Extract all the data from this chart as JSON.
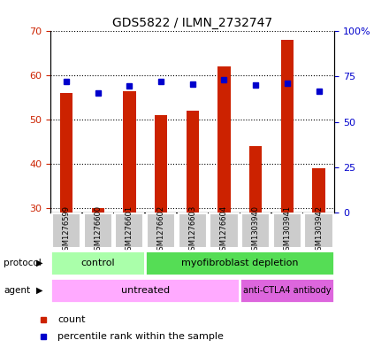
{
  "title": "GDS5822 / ILMN_2732747",
  "samples": [
    "GSM1276599",
    "GSM1276600",
    "GSM1276601",
    "GSM1276602",
    "GSM1276603",
    "GSM1276604",
    "GSM1303940",
    "GSM1303941",
    "GSM1303942"
  ],
  "counts": [
    56.0,
    30.0,
    56.5,
    51.0,
    52.0,
    62.0,
    44.0,
    68.0,
    39.0
  ],
  "percentiles": [
    72.5,
    66.0,
    70.0,
    72.5,
    71.0,
    73.5,
    70.5,
    71.5,
    67.0
  ],
  "ylim_left": [
    29,
    70
  ],
  "ylim_right": [
    0,
    100
  ],
  "yticks_left": [
    30,
    40,
    50,
    60,
    70
  ],
  "yticks_right": [
    0,
    25,
    50,
    75,
    100
  ],
  "bar_color": "#cc2200",
  "dot_color": "#0000cc",
  "bar_bottom": 29,
  "protocol_labels": [
    "control",
    "myofibroblast depletion"
  ],
  "protocol_colors": [
    "#aaffaa",
    "#55dd55"
  ],
  "agent_labels": [
    "untreated",
    "anti-CTLA4 antibody"
  ],
  "agent_colors": [
    "#ffaaff",
    "#dd66dd"
  ],
  "bg_color": "#cccccc",
  "plot_bg": "#ffffff",
  "left_tick_color": "#cc2200",
  "right_tick_color": "#0000cc"
}
